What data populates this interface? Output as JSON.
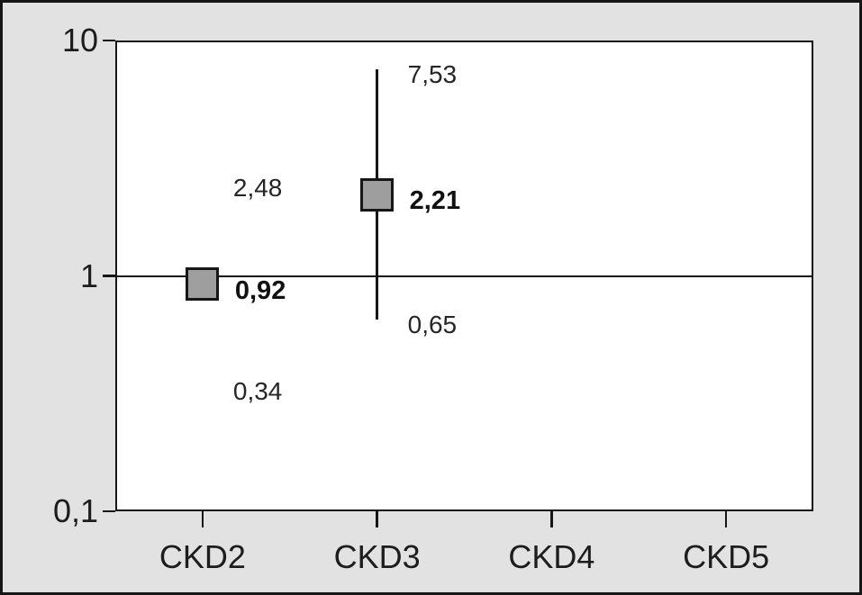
{
  "figure": {
    "colors": {
      "outer_background": "#e2e2e2",
      "plot_background": "#ffffff",
      "frame": "#161616",
      "marker_fill": "#9e9e9e",
      "text": "#1d1d1d"
    }
  },
  "chart_data": {
    "type": "scatter",
    "subtype": "forest-plot",
    "title": "",
    "xlabel": "",
    "ylabel": "",
    "y_scale": "log",
    "ylim": [
      0.1,
      10
    ],
    "grid": "off",
    "legend": "none",
    "reference_line_y": 1,
    "y_ticks": [
      {
        "value": 10,
        "label": "10"
      },
      {
        "value": 1,
        "label": "1"
      },
      {
        "value": 0.1,
        "label": "0,1"
      }
    ],
    "categories": [
      "CKD2",
      "CKD3",
      "CKD4",
      "CKD5"
    ],
    "series": [
      {
        "category": "CKD2",
        "estimate": 0.92,
        "estimate_label": "0,92",
        "ci_low": 0.34,
        "ci_low_label": "0,34",
        "ci_high": 2.48,
        "ci_high_label": "2,48",
        "whisker_drawn": false
      },
      {
        "category": "CKD3",
        "estimate": 2.21,
        "estimate_label": "2,21",
        "ci_low": 0.65,
        "ci_low_label": "0,65",
        "ci_high": 7.53,
        "ci_high_label": "7,53",
        "whisker_drawn": true
      }
    ]
  }
}
